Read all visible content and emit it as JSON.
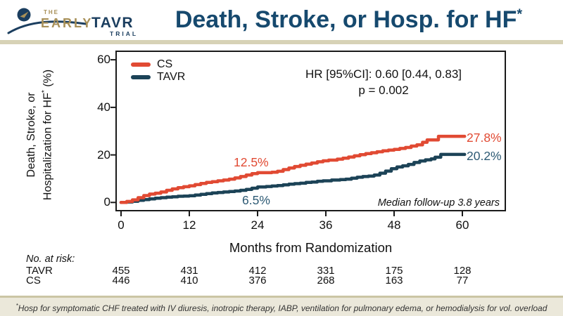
{
  "header": {
    "logo": {
      "the": "THE",
      "early": "EARLY",
      "tavr": "TAVR",
      "trial": "TRIAL"
    },
    "title": "Death, Stroke, or Hosp. for HF",
    "title_sup": "*"
  },
  "chart_data": {
    "type": "line",
    "subtype": "kaplan-meier-step",
    "title": "Death, Stroke, or Hosp. for HF*",
    "xlabel": "Months from Randomization",
    "ylabel_line1": "Death, Stroke, or",
    "ylabel_line2": "Hospitalization for HF",
    "ylabel_sup": "*",
    "ylabel_unit": " (%)",
    "xlim": [
      0,
      60
    ],
    "ylim": [
      0,
      60
    ],
    "x_ticks": [
      "0",
      "12",
      "24",
      "36",
      "48",
      "60"
    ],
    "y_ticks": [
      "60",
      "40",
      "20",
      "0"
    ],
    "grid": false,
    "legend_position": "top-left-inside",
    "series": [
      {
        "name": "CS",
        "color": "#e14a33",
        "mid_label": "12.5%",
        "end_label": "27.8%",
        "points": [
          [
            0,
            0
          ],
          [
            1,
            0.4
          ],
          [
            2,
            1.1
          ],
          [
            3,
            2.0
          ],
          [
            4,
            2.9
          ],
          [
            5,
            3.5
          ],
          [
            6,
            3.9
          ],
          [
            7,
            4.4
          ],
          [
            8,
            5.1
          ],
          [
            9,
            5.7
          ],
          [
            10,
            6.2
          ],
          [
            11,
            6.6
          ],
          [
            12,
            7.0
          ],
          [
            13,
            7.5
          ],
          [
            14,
            8.0
          ],
          [
            15,
            8.4
          ],
          [
            16,
            8.7
          ],
          [
            17,
            9.1
          ],
          [
            18,
            9.4
          ],
          [
            19,
            9.8
          ],
          [
            20,
            10.3
          ],
          [
            21,
            10.9
          ],
          [
            22,
            11.5
          ],
          [
            23,
            12.1
          ],
          [
            24,
            12.5
          ],
          [
            26.5,
            12.7
          ],
          [
            27.5,
            13.1
          ],
          [
            28.5,
            13.8
          ],
          [
            29.5,
            14.5
          ],
          [
            30.5,
            15.1
          ],
          [
            31.5,
            15.6
          ],
          [
            32.5,
            16.1
          ],
          [
            33.5,
            16.6
          ],
          [
            34.5,
            17.1
          ],
          [
            35.5,
            17.5
          ],
          [
            36.5,
            17.8
          ],
          [
            38,
            18.2
          ],
          [
            39,
            18.6
          ],
          [
            40,
            19.1
          ],
          [
            41,
            19.6
          ],
          [
            42,
            20.1
          ],
          [
            43,
            20.5
          ],
          [
            44,
            20.9
          ],
          [
            45,
            21.3
          ],
          [
            46,
            21.7
          ],
          [
            47,
            22.0
          ],
          [
            48,
            22.3
          ],
          [
            49,
            22.7
          ],
          [
            50,
            23.1
          ],
          [
            51,
            23.7
          ],
          [
            52,
            24.2
          ],
          [
            53,
            25.3
          ],
          [
            53.8,
            26.3
          ],
          [
            55.8,
            27.8
          ],
          [
            60.4,
            27.8
          ]
        ]
      },
      {
        "name": "TAVR",
        "color": "#1c4357",
        "mid_label": "6.5%",
        "end_label": "20.2%",
        "points": [
          [
            0,
            0
          ],
          [
            1,
            0.2
          ],
          [
            2,
            0.5
          ],
          [
            3,
            0.9
          ],
          [
            4,
            1.2
          ],
          [
            5,
            1.5
          ],
          [
            6,
            1.8
          ],
          [
            7,
            2.0
          ],
          [
            8,
            2.2
          ],
          [
            9,
            2.4
          ],
          [
            10,
            2.6
          ],
          [
            11,
            2.7
          ],
          [
            12,
            2.8
          ],
          [
            13,
            3.1
          ],
          [
            14,
            3.4
          ],
          [
            15,
            3.7
          ],
          [
            16,
            4.0
          ],
          [
            17,
            4.2
          ],
          [
            18,
            4.4
          ],
          [
            19,
            4.6
          ],
          [
            20,
            4.8
          ],
          [
            21,
            5.1
          ],
          [
            22,
            5.5
          ],
          [
            23,
            6.0
          ],
          [
            24,
            6.5
          ],
          [
            25.5,
            6.7
          ],
          [
            26.5,
            6.9
          ],
          [
            27.5,
            7.1
          ],
          [
            28.5,
            7.4
          ],
          [
            29.5,
            7.7
          ],
          [
            30.5,
            7.9
          ],
          [
            31.5,
            8.1
          ],
          [
            32.5,
            8.4
          ],
          [
            33.5,
            8.6
          ],
          [
            34.5,
            8.9
          ],
          [
            35.5,
            9.1
          ],
          [
            37,
            9.4
          ],
          [
            38.5,
            9.6
          ],
          [
            39.5,
            9.8
          ],
          [
            40.5,
            10.2
          ],
          [
            41.5,
            10.6
          ],
          [
            42.5,
            10.9
          ],
          [
            43.5,
            11.1
          ],
          [
            44.5,
            11.5
          ],
          [
            45.5,
            12.3
          ],
          [
            46.5,
            13.2
          ],
          [
            47.5,
            14.2
          ],
          [
            48.5,
            14.9
          ],
          [
            49.5,
            15.4
          ],
          [
            50.5,
            16.0
          ],
          [
            51.5,
            16.8
          ],
          [
            52.5,
            17.4
          ],
          [
            53.5,
            17.9
          ],
          [
            54.5,
            18.3
          ],
          [
            55.2,
            19.0
          ],
          [
            56.2,
            20.2
          ],
          [
            60.4,
            20.2
          ]
        ]
      }
    ],
    "annotations": {
      "hr_line1": "HR [95%CI]: 0.60 [0.44, 0.83]",
      "hr_line2": "p = 0.002",
      "median_followup": "Median follow-up 3.8 years"
    }
  },
  "risk_table": {
    "caption": "No. at risk:",
    "rows": [
      {
        "label": "TAVR",
        "values": [
          "455",
          "431",
          "412",
          "331",
          "175",
          "128"
        ]
      },
      {
        "label": "CS",
        "values": [
          "446",
          "410",
          "376",
          "268",
          "163",
          "77"
        ]
      }
    ]
  },
  "footer": {
    "sup": "*",
    "note": "Hosp for symptomatic CHF treated with IV diuresis, inotropic therapy, IABP, ventilation for pulmonary edema, or hemodialysis for vol. overload"
  },
  "colors": {
    "accent_red": "#e14a33",
    "accent_navy": "#1c4357",
    "navy_label_text": "#2d5a74",
    "title_navy": "#16496e",
    "logo_gold": "#a89058",
    "logo_navy": "#1b3e5f",
    "divider_tan": "#d7d2b6",
    "footer_bg": "#ebe8da",
    "footer_border": "#cbc5a4",
    "axis_black": "#1a1a1a"
  }
}
